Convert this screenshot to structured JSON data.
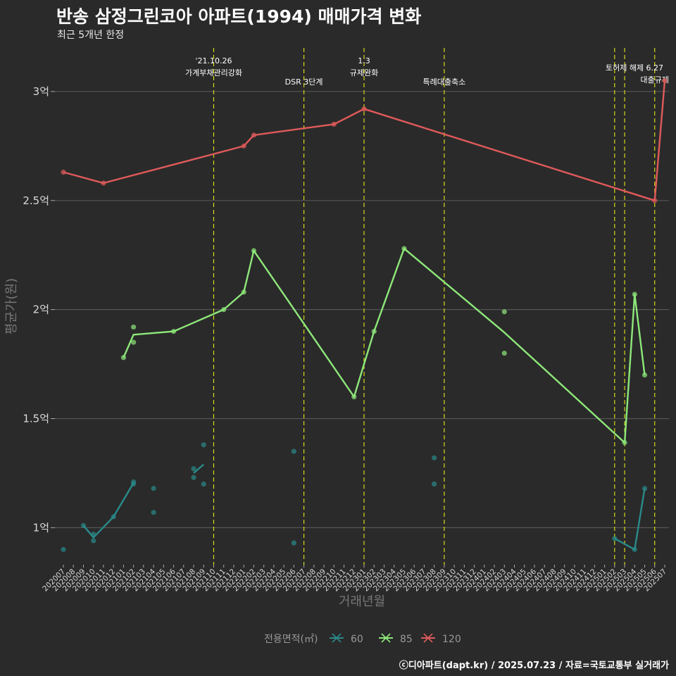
{
  "title": "반송 삼정그린코아 아파트(1994) 매매가격 변화",
  "subtitle": "최근 5개년 한정",
  "caption": "ⓒ디아파트(dapt.kr) / 2025.07.23 / 자료=국토교통부 실거래가",
  "colors": {
    "background": "#2a2a2a",
    "grid": "#555555",
    "vline": "#e5e51a",
    "s60": "#2a8a8a",
    "s85": "#8ee87a",
    "s120": "#e05a5a"
  },
  "chart_data": {
    "type": "line",
    "xlabel": "거래년월",
    "ylabel": "평균가(원)",
    "ylim": [
      0.83,
      3.2
    ],
    "yticks": [
      {
        "v": 1,
        "label": "1억"
      },
      {
        "v": 1.5,
        "label": "1.5억"
      },
      {
        "v": 2,
        "label": "2억"
      },
      {
        "v": 2.5,
        "label": "2.5억"
      },
      {
        "v": 3,
        "label": "3억"
      }
    ],
    "categories": [
      "202007",
      "202008",
      "202009",
      "202010",
      "202011",
      "202012",
      "202101",
      "202102",
      "202103",
      "202104",
      "202105",
      "202106",
      "202107",
      "202108",
      "202109",
      "202110",
      "202111",
      "202112",
      "202201",
      "202202",
      "202203",
      "202204",
      "202205",
      "202206",
      "202207",
      "202208",
      "202209",
      "202210",
      "202211",
      "202212",
      "202301",
      "202302",
      "202303",
      "202304",
      "202305",
      "202306",
      "202307",
      "202308",
      "202309",
      "202310",
      "202311",
      "202312",
      "202401",
      "202402",
      "202403",
      "202404",
      "202405",
      "202406",
      "202407",
      "202408",
      "202409",
      "202410",
      "202411",
      "202412",
      "202501",
      "202502",
      "202503",
      "202504",
      "202505",
      "202506",
      "202507"
    ],
    "legend": {
      "title": "전용면적(㎡)",
      "items": [
        "60",
        "85",
        "120"
      ]
    },
    "series": [
      {
        "name": "60",
        "color_key": "s60",
        "points": [
          [
            "202007",
            0.9
          ],
          [
            "202009",
            1.01
          ],
          [
            "202010",
            0.94
          ],
          [
            "202010",
            0.97
          ],
          [
            "202012",
            1.05
          ],
          [
            "202102",
            1.21
          ],
          [
            "202102",
            1.2
          ],
          [
            "202104",
            1.18
          ],
          [
            "202104",
            1.07
          ],
          [
            "202108",
            1.27
          ],
          [
            "202108",
            1.23
          ],
          [
            "202109",
            1.38
          ],
          [
            "202109",
            1.2
          ],
          [
            "202206",
            1.35
          ],
          [
            "202206",
            0.93
          ],
          [
            "202308",
            1.32
          ],
          [
            "202308",
            1.2
          ],
          [
            "202502",
            0.95
          ],
          [
            "202504",
            0.9
          ],
          [
            "202505",
            1.18
          ]
        ],
        "lines": [
          [
            [
              "202009",
              1.01
            ],
            [
              "202010",
              0.955
            ],
            [
              "202012",
              1.05
            ],
            [
              "202102",
              1.205
            ]
          ],
          [
            [
              "202108",
              1.25
            ],
            [
              "202109",
              1.29
            ]
          ],
          [
            [
              "202502",
              0.95
            ],
            [
              "202504",
              0.9
            ],
            [
              "202505",
              1.18
            ]
          ]
        ]
      },
      {
        "name": "85",
        "color_key": "s85",
        "points": [
          [
            "202101",
            1.78
          ],
          [
            "202102",
            1.92
          ],
          [
            "202102",
            1.85
          ],
          [
            "202106",
            1.9
          ],
          [
            "202111",
            2.0
          ],
          [
            "202201",
            2.08
          ],
          [
            "202202",
            2.27
          ],
          [
            "202212",
            1.6
          ],
          [
            "202302",
            1.9
          ],
          [
            "202305",
            2.28
          ],
          [
            "202403",
            1.99
          ],
          [
            "202403",
            1.8
          ],
          [
            "202503",
            1.39
          ],
          [
            "202504",
            2.07
          ],
          [
            "202505",
            1.7
          ]
        ],
        "lines": [
          [
            [
              "202101",
              1.78
            ],
            [
              "202102",
              1.885
            ],
            [
              "202106",
              1.9
            ],
            [
              "202111",
              2.0
            ],
            [
              "202201",
              2.08
            ],
            [
              "202202",
              2.27
            ],
            [
              "202212",
              1.6
            ],
            [
              "202302",
              1.9
            ],
            [
              "202305",
              2.28
            ],
            [
              "202403",
              1.895
            ],
            [
              "202503",
              1.39
            ],
            [
              "202504",
              2.07
            ],
            [
              "202505",
              1.7
            ]
          ]
        ]
      },
      {
        "name": "120",
        "color_key": "s120",
        "points": [
          [
            "202007",
            2.63
          ],
          [
            "202011",
            2.58
          ],
          [
            "202201",
            2.75
          ],
          [
            "202202",
            2.8
          ],
          [
            "202210",
            2.85
          ],
          [
            "202301",
            2.92
          ],
          [
            "202506",
            2.5
          ],
          [
            "202507",
            3.05
          ]
        ],
        "lines": [
          [
            [
              "202007",
              2.63
            ],
            [
              "202011",
              2.58
            ],
            [
              "202201",
              2.75
            ],
            [
              "202202",
              2.8
            ],
            [
              "202210",
              2.85
            ],
            [
              "202301",
              2.92
            ],
            [
              "202506",
              2.5
            ],
            [
              "202507",
              3.05
            ]
          ]
        ]
      }
    ],
    "annotations": [
      {
        "x": "202110",
        "lines": [
          "'21.10.26",
          "가계부채관리강화"
        ],
        "row": 0
      },
      {
        "x": "202207",
        "lines": [
          "DSR 3단계"
        ],
        "row": 2
      },
      {
        "x": "202301",
        "lines": [
          "1.3",
          "규제완화"
        ],
        "row": 0
      },
      {
        "x": "202309",
        "lines": [
          "특례대출축소"
        ],
        "row": 2
      },
      {
        "x": "202502",
        "lines": [
          ""
        ],
        "row": 1
      },
      {
        "x": "202503",
        "lines": [
          "토허제 해제"
        ],
        "row": 1
      },
      {
        "x": "202506",
        "lines": [
          "6.27",
          "대출규제"
        ],
        "row": 1
      }
    ]
  }
}
